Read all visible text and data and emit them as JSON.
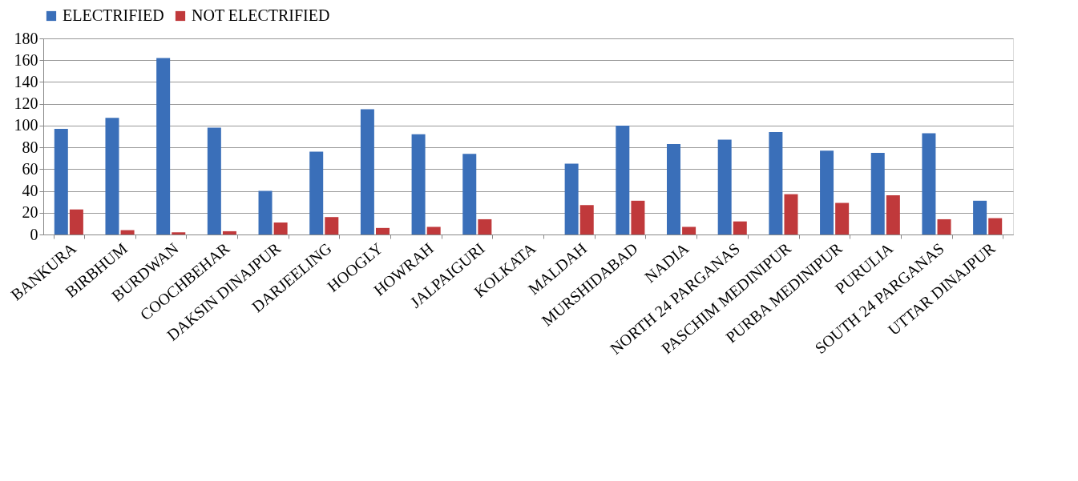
{
  "chart_data": {
    "type": "bar",
    "categories": [
      "BANKURA",
      "BIRBHUM",
      "BURDWAN",
      "COOCHBEHAR",
      "DAKSIN DINAJPUR",
      "DARJEELING",
      "HOOGLY",
      "HOWRAH",
      "JALPAIGURI",
      "KOLKATA",
      "MALDAH",
      "MURSHIDABAD",
      "NADIA",
      "NORTH 24 PARGANAS",
      "PASCHIM MEDINIPUR",
      "PURBA MEDINIPUR",
      "PURULIA",
      "SOUTH 24 PARGANAS",
      "UTTAR DINAJPUR"
    ],
    "series": [
      {
        "name": "ELECTRIFIED",
        "color": "#3a6fb9",
        "values": [
          97,
          107,
          162,
          98,
          40,
          76,
          115,
          92,
          74,
          null,
          65,
          100,
          83,
          87,
          94,
          77,
          75,
          93,
          31
        ]
      },
      {
        "name": "NOT ELECTRIFIED",
        "color": "#c0393b",
        "values": [
          23,
          4,
          2,
          3,
          11,
          16,
          6,
          7,
          14,
          null,
          27,
          31,
          7,
          12,
          37,
          29,
          36,
          14,
          15
        ]
      }
    ],
    "ylim": [
      0,
      180
    ],
    "yticks": [
      0,
      20,
      40,
      60,
      80,
      100,
      120,
      140,
      160,
      180
    ],
    "grid": "y",
    "legend": "top"
  }
}
